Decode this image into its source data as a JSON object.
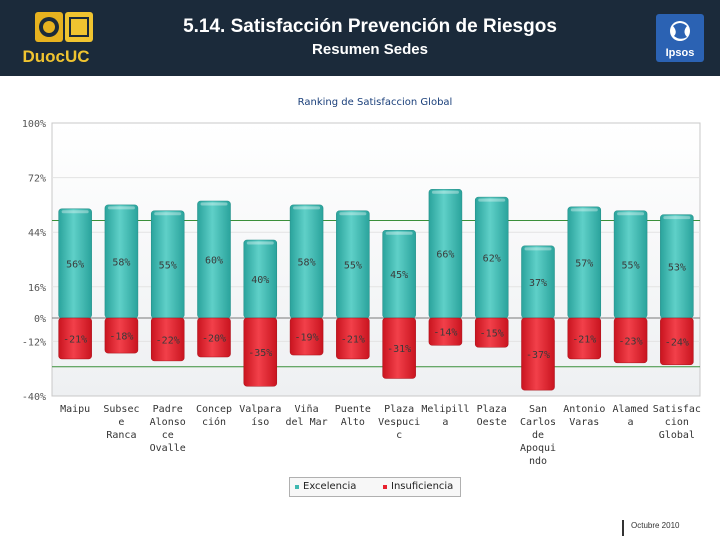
{
  "header": {
    "title": "5.14. Satisfacción Prevención de Riesgos",
    "subtitle": "Resumen Sedes",
    "logo_left_text": "DuocUC",
    "logo_right_text": "Ipsos"
  },
  "footer": {
    "date": "Octubre 2010"
  },
  "colors": {
    "header_bg": "#1b2a3a",
    "excelencia": "#3fb8b0",
    "insuficiencia": "#e8212e"
  },
  "chart_data": {
    "type": "bar",
    "title": "Ranking de Satisfaccion Global",
    "yticks": [
      100,
      72,
      44,
      16,
      0,
      -12,
      -40
    ],
    "ytick_labels": [
      "100%",
      "72%",
      "44%",
      "16%",
      "0%",
      "-12%",
      "-40%"
    ],
    "ylim": [
      -40,
      100
    ],
    "reference_lines": [
      50,
      -25
    ],
    "categories": [
      [
        "Maipu"
      ],
      [
        "Subsec",
        "e",
        "Ranca"
      ],
      [
        "Padre",
        "Alonso",
        "ce",
        "Ovalle"
      ],
      [
        "Concep",
        "ción"
      ],
      [
        "Valpara",
        "íso"
      ],
      [
        "Viña",
        "del Mar"
      ],
      [
        "Puente",
        "Alto"
      ],
      [
        "Plaza",
        "Vespuci",
        "c"
      ],
      [
        "Melipill",
        "a"
      ],
      [
        "Plaza",
        "Oeste"
      ],
      [
        "San",
        "Carlos",
        "de",
        "Apoqui",
        "ndo"
      ],
      [
        "Antonio",
        "Varas"
      ],
      [
        "Alamed",
        "a"
      ],
      [
        "Satisfac",
        "cion",
        "Global"
      ]
    ],
    "series": [
      {
        "name": "Excelencia",
        "values": [
          56,
          58,
          55,
          60,
          40,
          58,
          55,
          45,
          66,
          62,
          37,
          57,
          55,
          53
        ],
        "labels": [
          "56%",
          "58%",
          "55%",
          "60%",
          "40%",
          "58%",
          "55%",
          "45%",
          "66%",
          "62%",
          "37%",
          "57%",
          "55%",
          "53%"
        ]
      },
      {
        "name": "Insuficiencia",
        "values": [
          -21,
          -18,
          -22,
          -20,
          -35,
          -19,
          -21,
          -31,
          -14,
          -15,
          -37,
          -21,
          -23,
          -24
        ],
        "labels": [
          "-21%",
          "-18%",
          "-22%",
          "-20%",
          "-35%",
          "-19%",
          "-21%",
          "-31%",
          "-14%",
          "-15%",
          "-37%",
          "-21%",
          "-23%",
          "-24%"
        ]
      }
    ],
    "legend": {
      "position": "bottom",
      "excelencia": "Excelencia",
      "insuficiencia": "Insuficiencia"
    }
  }
}
